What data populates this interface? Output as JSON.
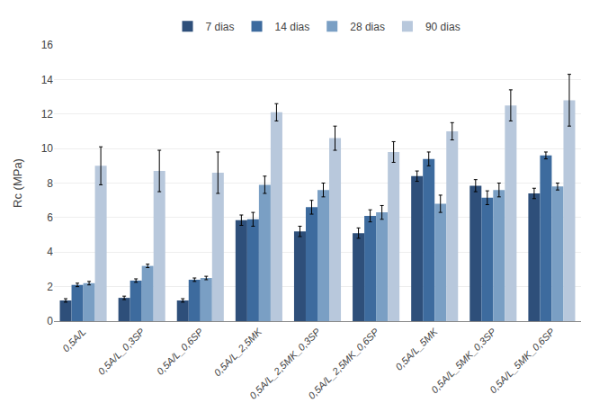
{
  "chart_data": {
    "type": "bar",
    "ylabel": "Rc (MPa)",
    "categories": [
      "0,5A/L",
      "0,5A/L_0,3SP",
      "0,5A/L_0,6SP",
      "0,5A/L_2,5MK",
      "0,5A/L_2,5MK_0,3SP",
      "0,5A/L_2,5MK_0,6SP",
      "0,5A/L_5MK",
      "0,5A/L_5MK_0,3SP",
      "0,5A/L_5MK_0,6SP"
    ],
    "series": [
      {
        "name": "7 dias",
        "color": "#2E4F7A",
        "values": [
          1.2,
          1.35,
          1.2,
          5.85,
          5.2,
          5.1,
          8.4,
          7.85,
          7.4
        ],
        "errors": [
          0.1,
          0.1,
          0.1,
          0.3,
          0.3,
          0.3,
          0.3,
          0.35,
          0.3
        ]
      },
      {
        "name": "14 dias",
        "color": "#3D6B9E",
        "values": [
          2.1,
          2.35,
          2.4,
          5.9,
          6.6,
          6.1,
          9.4,
          7.15,
          9.6
        ],
        "errors": [
          0.1,
          0.1,
          0.1,
          0.4,
          0.4,
          0.35,
          0.4,
          0.4,
          0.2
        ]
      },
      {
        "name": "28 dias",
        "color": "#7A9FC4",
        "values": [
          2.2,
          3.2,
          2.5,
          7.9,
          7.6,
          6.3,
          6.8,
          7.6,
          7.8
        ],
        "errors": [
          0.1,
          0.1,
          0.1,
          0.5,
          0.4,
          0.4,
          0.5,
          0.4,
          0.2
        ]
      },
      {
        "name": "90 dias",
        "color": "#B8C8DC",
        "values": [
          9.0,
          8.7,
          8.6,
          12.1,
          10.6,
          9.8,
          11.0,
          12.5,
          12.8
        ],
        "errors": [
          1.1,
          1.2,
          1.2,
          0.5,
          0.7,
          0.6,
          0.5,
          0.9,
          1.5
        ]
      }
    ],
    "ylim": [
      0,
      16
    ],
    "yticks": [
      0,
      2,
      4,
      6,
      8,
      10,
      12,
      14,
      16
    ],
    "grid": true,
    "legend": "top"
  }
}
